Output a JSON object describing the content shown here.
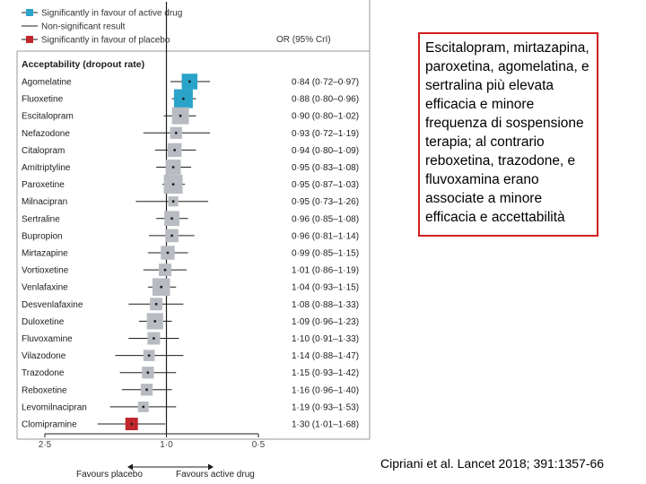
{
  "legend": [
    {
      "label": "Significantly in favour of active drug",
      "color": "#2aa3c8",
      "type": "square-line"
    },
    {
      "label": "Non-significant result",
      "color": "#1d1d1b",
      "type": "line"
    },
    {
      "label": "Significantly in favour of placebo",
      "color": "#c0272d",
      "type": "square-line"
    }
  ],
  "callout_text": "Escitalopram, mirtazapina, paroxetina, agomelatina, e sertralina più elevata efficacia e minore frequenza di sospensione terapia; al contrario reboxetina, trazodone, e fluvoxamina erano associate a minore efficacia e accettabilità",
  "citation": "Cipriani et al. Lancet 2018; 391:1357-66",
  "colors": {
    "significant_active": "#2aa3c8",
    "non_significant": "#b8bcc2",
    "significant_placebo": "#c0272d",
    "callout_border": "#d21f1f"
  },
  "chart_data": {
    "type": "forest",
    "section_title": "Acceptability (dropout rate)",
    "column_header": "OR (95% CrI)",
    "x_scale": "log, reversed (higher values left)",
    "xlim": [
      2.5,
      0.5
    ],
    "xticks": [
      2.5,
      1.0,
      0.5
    ],
    "xtick_labels": [
      "2·5",
      "1·0",
      "0·5"
    ],
    "reference_line": 1.0,
    "xlabel_left": "Favours placebo",
    "xlabel_right": "Favours active drug",
    "rows": [
      {
        "drug": "Agomelatine",
        "or": 0.84,
        "lo": 0.72,
        "hi": 0.97,
        "ci_text": "0·84 (0·72–0·97)",
        "status": "active",
        "weight": 0.75
      },
      {
        "drug": "Fluoxetine",
        "or": 0.88,
        "lo": 0.8,
        "hi": 0.96,
        "ci_text": "0·88 (0·80–0·96)",
        "status": "active",
        "weight": 1.0
      },
      {
        "drug": "Escitalopram",
        "or": 0.9,
        "lo": 0.8,
        "hi": 1.02,
        "ci_text": "0·90 (0·80–1·02)",
        "status": "ns",
        "weight": 0.85
      },
      {
        "drug": "Nefazodone",
        "or": 0.93,
        "lo": 0.72,
        "hi": 1.19,
        "ci_text": "0·93 (0·72–1·19)",
        "status": "ns",
        "weight": 0.45
      },
      {
        "drug": "Citalopram",
        "or": 0.94,
        "lo": 0.8,
        "hi": 1.09,
        "ci_text": "0·94 (0·80–1·09)",
        "status": "ns",
        "weight": 0.6
      },
      {
        "drug": "Amitriptyline",
        "or": 0.95,
        "lo": 0.83,
        "hi": 1.08,
        "ci_text": "0·95 (0·83–1·08)",
        "status": "ns",
        "weight": 0.7
      },
      {
        "drug": "Paroxetine",
        "or": 0.95,
        "lo": 0.87,
        "hi": 1.03,
        "ci_text": "0·95 (0·87–1·03)",
        "status": "ns",
        "weight": 1.0
      },
      {
        "drug": "Milnacipran",
        "or": 0.95,
        "lo": 0.73,
        "hi": 1.26,
        "ci_text": "0·95 (0·73–1·26)",
        "status": "ns",
        "weight": 0.3
      },
      {
        "drug": "Sertraline",
        "or": 0.96,
        "lo": 0.85,
        "hi": 1.08,
        "ci_text": "0·96 (0·85–1·08)",
        "status": "ns",
        "weight": 0.7
      },
      {
        "drug": "Bupropion",
        "or": 0.96,
        "lo": 0.81,
        "hi": 1.14,
        "ci_text": "0·96 (0·81–1·14)",
        "status": "ns",
        "weight": 0.55
      },
      {
        "drug": "Mirtazapine",
        "or": 0.99,
        "lo": 0.85,
        "hi": 1.15,
        "ci_text": "0·99 (0·85–1·15)",
        "status": "ns",
        "weight": 0.6
      },
      {
        "drug": "Vortioxetine",
        "or": 1.01,
        "lo": 0.86,
        "hi": 1.19,
        "ci_text": "1·01 (0·86–1·19)",
        "status": "ns",
        "weight": 0.5
      },
      {
        "drug": "Venlafaxine",
        "or": 1.04,
        "lo": 0.93,
        "hi": 1.15,
        "ci_text": "1·04 (0·93–1·15)",
        "status": "ns",
        "weight": 0.9
      },
      {
        "drug": "Desvenlafaxine",
        "or": 1.08,
        "lo": 0.88,
        "hi": 1.33,
        "ci_text": "1·08 (0·88–1·33)",
        "status": "ns",
        "weight": 0.5
      },
      {
        "drug": "Duloxetine",
        "or": 1.09,
        "lo": 0.96,
        "hi": 1.23,
        "ci_text": "1·09 (0·96–1·23)",
        "status": "ns",
        "weight": 0.8
      },
      {
        "drug": "Fluvoxamine",
        "or": 1.1,
        "lo": 0.91,
        "hi": 1.33,
        "ci_text": "1·10 (0·91–1·33)",
        "status": "ns",
        "weight": 0.5
      },
      {
        "drug": "Vilazodone",
        "or": 1.14,
        "lo": 0.88,
        "hi": 1.47,
        "ci_text": "1·14 (0·88–1·47)",
        "status": "ns",
        "weight": 0.4
      },
      {
        "drug": "Trazodone",
        "or": 1.15,
        "lo": 0.93,
        "hi": 1.42,
        "ci_text": "1·15 (0·93–1·42)",
        "status": "ns",
        "weight": 0.45
      },
      {
        "drug": "Reboxetine",
        "or": 1.16,
        "lo": 0.96,
        "hi": 1.4,
        "ci_text": "1·16 (0·96–1·40)",
        "status": "ns",
        "weight": 0.45
      },
      {
        "drug": "Levomilnacipran",
        "or": 1.19,
        "lo": 0.93,
        "hi": 1.53,
        "ci_text": "1·19 (0·93–1·53)",
        "status": "ns",
        "weight": 0.35
      },
      {
        "drug": "Clomipramine",
        "or": 1.3,
        "lo": 1.01,
        "hi": 1.68,
        "ci_text": "1·30 (1·01–1·68)",
        "status": "placebo",
        "weight": 0.5
      }
    ]
  }
}
